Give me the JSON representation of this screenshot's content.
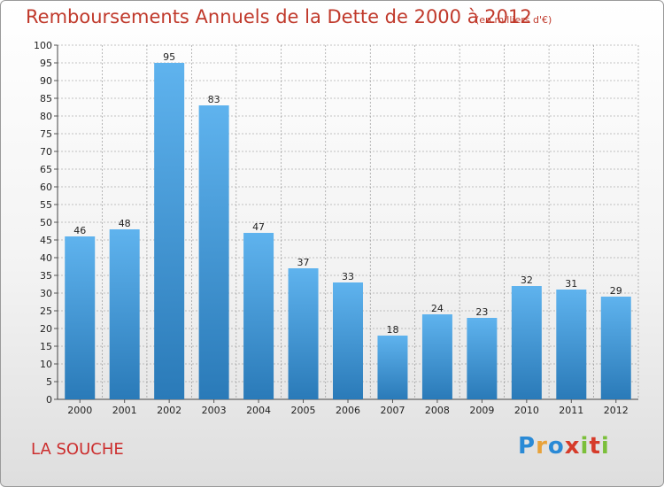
{
  "header": {
    "title": "Remboursements Annuels de la Dette de 2000 à 2012",
    "subtitle": "(en milliers d'€)"
  },
  "footer": {
    "location": "LA SOUCHE",
    "brand": {
      "logo_text": "Proxiti",
      "letters": [
        {
          "char": "P",
          "color": "#2a8ad6"
        },
        {
          "char": "r",
          "color": "#e8a23a"
        },
        {
          "char": "o",
          "color": "#2a8ad6"
        },
        {
          "char": "x",
          "color": "#d63b2a"
        },
        {
          "char": "i",
          "color": "#7bbf3a"
        },
        {
          "char": "t",
          "color": "#d63b2a"
        },
        {
          "char": "i",
          "color": "#7bbf3a"
        }
      ]
    }
  },
  "colors": {
    "title": "#c0392b",
    "bar_top": "#5fb3ee",
    "bar_bottom": "#2a7ab8",
    "grid": "#8a8a8a"
  },
  "chart_data": {
    "type": "bar",
    "categories": [
      "2000",
      "2001",
      "2002",
      "2003",
      "2004",
      "2005",
      "2006",
      "2007",
      "2008",
      "2009",
      "2010",
      "2011",
      "2012"
    ],
    "values": [
      46,
      48,
      95,
      83,
      47,
      37,
      33,
      18,
      24,
      23,
      32,
      31,
      29
    ],
    "ylim": [
      0,
      100
    ],
    "ytick_step": 5,
    "grid": true,
    "grid_style": "dashed",
    "data_labels": true,
    "xlabel": "",
    "ylabel": ""
  }
}
